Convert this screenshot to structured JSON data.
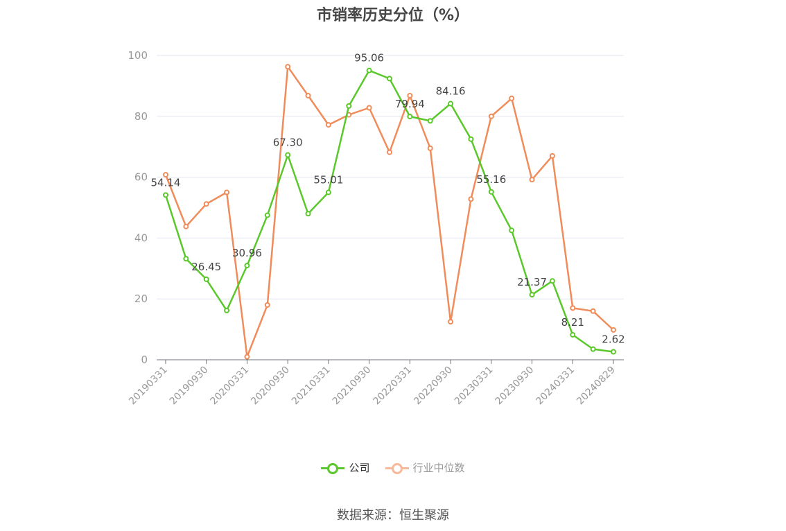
{
  "chart_data": {
    "type": "line",
    "title": "市销率历史分位（%）",
    "ylim": [
      0,
      100
    ],
    "yticks": [
      0,
      20,
      40,
      60,
      80,
      100
    ],
    "grid": true,
    "legend_position": "bottom",
    "xtick_labels": [
      "20190331",
      "20190930",
      "20200331",
      "20200930",
      "20210331",
      "20210930",
      "20220331",
      "20220930",
      "20230331",
      "20230930",
      "20240331",
      "20240829"
    ],
    "x": [
      "20190331",
      "20190630",
      "20190930",
      "20191231",
      "20200331",
      "20200630",
      "20200930",
      "20201231",
      "20210331",
      "20210630",
      "20210930",
      "20211231",
      "20220331",
      "20220630",
      "20220930",
      "20221231",
      "20230331",
      "20230630",
      "20230930",
      "20231231",
      "20240331",
      "20240630",
      "20240829"
    ],
    "series": [
      {
        "name": "公司",
        "color": "#5ac82a",
        "values": [
          54.14,
          33.2,
          26.45,
          16.2,
          30.96,
          47.5,
          67.3,
          48.0,
          55.01,
          83.4,
          95.06,
          92.4,
          79.94,
          78.5,
          84.16,
          72.5,
          55.16,
          42.5,
          21.37,
          25.9,
          8.21,
          3.5,
          2.62
        ],
        "labels": {
          "0": "54.14",
          "2": "26.45",
          "4": "30.96",
          "6": "67.30",
          "8": "55.01",
          "10": "95.06",
          "12": "79.94",
          "14": "84.16",
          "16": "55.16",
          "18": "21.37",
          "20": "8.21",
          "22": "2.62"
        }
      },
      {
        "name": "行业中位数",
        "color": "#f08b5a",
        "values": [
          60.8,
          43.8,
          51.2,
          55.0,
          1.0,
          18.0,
          96.3,
          86.8,
          77.2,
          80.5,
          82.8,
          68.2,
          86.8,
          69.5,
          12.5,
          52.8,
          80.0,
          85.9,
          59.2,
          67.0,
          17.0,
          16.0,
          9.8
        ]
      }
    ]
  },
  "legend": [
    {
      "label": "公司",
      "color": "#5ac82a"
    },
    {
      "label": "行业中位数",
      "color": "#f8b89b"
    }
  ],
  "source": "数据来源：恒生聚源"
}
